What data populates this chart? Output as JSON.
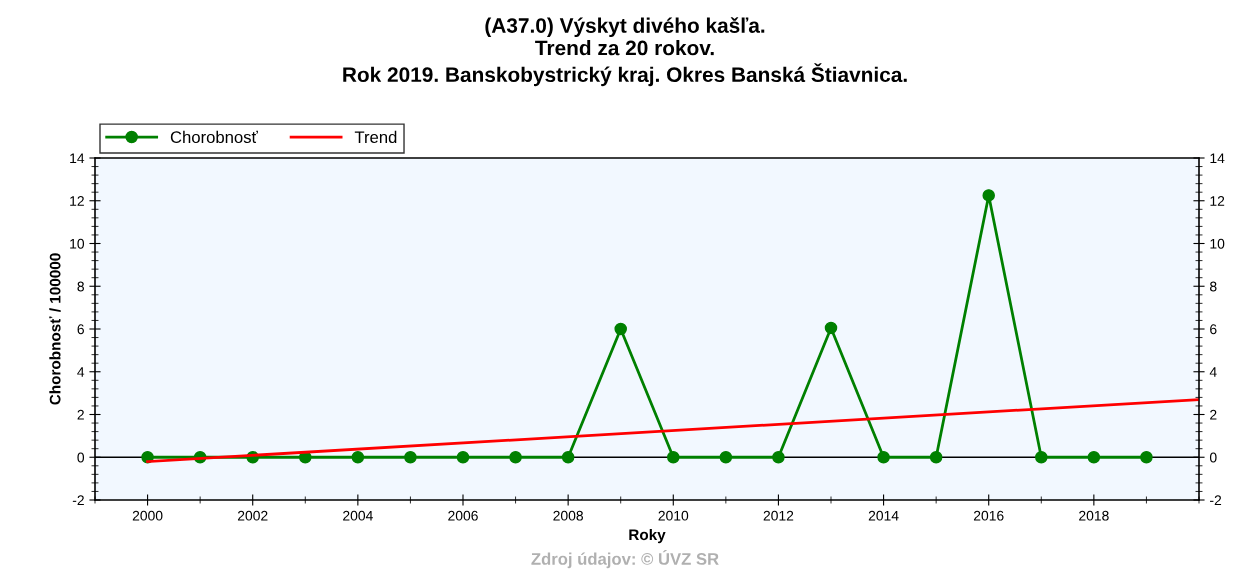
{
  "chart_data": {
    "type": "line",
    "title": "(A37.0) Výskyt divého kašľa.\nTrend za 20 rokov.\nRok 2019. Banskobystrický kraj. Okres Banská Štiavnica.",
    "xlabel": "Roky",
    "ylabel": "Chorobnosť / 100000",
    "annotations": [
      "Zdroj údajov: © ÚVZ SR"
    ],
    "series": [
      {
        "name": "Chorobnosť",
        "color": "#008000",
        "marker": "circle",
        "x": [
          2000,
          2001,
          2002,
          2003,
          2004,
          2005,
          2006,
          2007,
          2008,
          2009,
          2010,
          2011,
          2012,
          2013,
          2014,
          2015,
          2016,
          2017,
          2018,
          2019
        ],
        "values": [
          0,
          0,
          0,
          0,
          0,
          0,
          0,
          0,
          0,
          6.0,
          0,
          0,
          0,
          6.05,
          0,
          0,
          12.25,
          0,
          0,
          0
        ]
      },
      {
        "name": "Trend",
        "color": "#ff0000",
        "marker": "none",
        "x": [
          2000,
          2020
        ],
        "values": [
          -0.2,
          2.7
        ]
      }
    ],
    "xlim": [
      1999,
      2020
    ],
    "xticks": [
      2000,
      2002,
      2004,
      2006,
      2008,
      2010,
      2012,
      2014,
      2016,
      2018
    ],
    "ylim": [
      -2,
      14
    ],
    "yticks": [
      -2,
      0,
      2,
      4,
      6,
      8,
      10,
      12,
      14
    ],
    "y2lim": [
      -2,
      14
    ],
    "y2ticks": [
      -2,
      0,
      2,
      4,
      6,
      8,
      10,
      12,
      14
    ],
    "ref_lines": [
      {
        "axis": "y",
        "value": 0,
        "color": "#000000"
      }
    ],
    "grid": false,
    "legend": "top left"
  }
}
